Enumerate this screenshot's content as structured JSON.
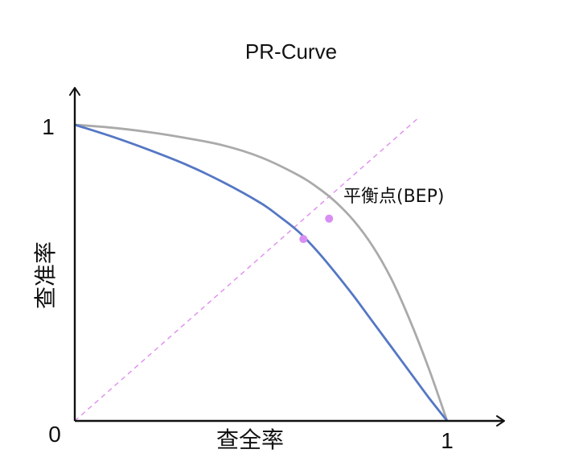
{
  "title": "PR-Curve",
  "x_label": "查全率",
  "y_label": "查准率",
  "ticks": {
    "origin": "0",
    "x_max": "1",
    "y_max": "1"
  },
  "bep_label": "平衡点(BEP)",
  "colors": {
    "curve_outer": "#aaaaaa",
    "curve_inner": "#5577c4",
    "diagonal": "#e08cf0",
    "bep_point": "#d88ef2",
    "axis": "#111111"
  },
  "chart_data": {
    "type": "line",
    "title": "PR-Curve",
    "xlabel": "查全率",
    "ylabel": "查准率",
    "xlim": [
      0,
      1
    ],
    "ylim": [
      0,
      1
    ],
    "grid": false,
    "series": [
      {
        "x": [
          0,
          0.1,
          0.2,
          0.3,
          0.4,
          0.5,
          0.6,
          0.65,
          0.7,
          0.75,
          0.8,
          0.85,
          0.9,
          0.95,
          1
        ],
        "y": [
          1,
          0.99,
          0.975,
          0.955,
          0.93,
          0.89,
          0.83,
          0.79,
          0.74,
          0.675,
          0.59,
          0.48,
          0.34,
          0.18,
          0
        ]
      },
      {
        "x": [
          0,
          0.1,
          0.2,
          0.3,
          0.4,
          0.5,
          0.55,
          0.6,
          0.65,
          0.7,
          0.75,
          0.8,
          0.85,
          0.9,
          0.95,
          1
        ],
        "y": [
          1,
          0.96,
          0.915,
          0.865,
          0.805,
          0.735,
          0.69,
          0.64,
          0.575,
          0.5,
          0.42,
          0.335,
          0.25,
          0.165,
          0.08,
          0
        ]
      }
    ],
    "reference_line": {
      "x": [
        0,
        0.92
      ],
      "y": [
        0,
        1.02
      ],
      "style": "dashed"
    },
    "bep_points": [
      {
        "x": 0.683,
        "y": 0.683
      },
      {
        "x": 0.614,
        "y": 0.614
      }
    ],
    "annotations": [
      {
        "text": "平衡点(BEP)",
        "x": 0.683,
        "y": 0.683
      }
    ]
  }
}
